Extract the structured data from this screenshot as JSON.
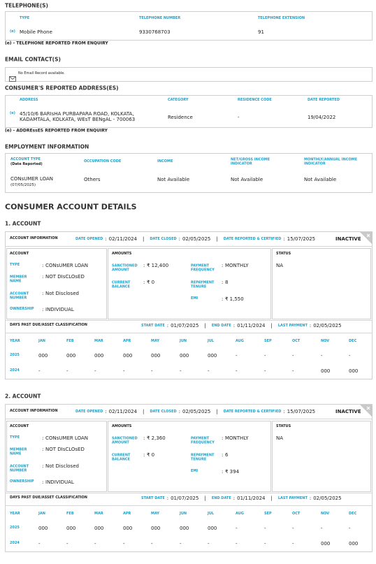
{
  "separator": ":",
  "divider": "|",
  "telephones": {
    "title": "TELEPHONE(S)",
    "headers": [
      "TYPE",
      "TELEPHONE NUMBER",
      "TELEPHONE EXTENSION"
    ],
    "rows": [
      {
        "marker": "(e)",
        "type": "Mobile Phone",
        "number": "9330768703",
        "extension": "91"
      }
    ],
    "note": "(e) - TELEPHONE REPORTED FROM ENQUIRY"
  },
  "email": {
    "title": "EMAIL CONTACT(S)",
    "message": "No Email Record available."
  },
  "addresses": {
    "title": "CONSUMER'S REPORTED ADDRESS(ES)",
    "headers": [
      "ADDRESS",
      "CATEGORY",
      "RESIDENCE CODE",
      "DATE REPORTED"
    ],
    "rows": [
      {
        "marker": "(e)",
        "address": "45/10/6 BARIsHA PURBAPARA ROAD, KOLKATA, KADAMTALA, KOLKATA, WEsT BENgAL - 700063",
        "category": "Residence",
        "residence_code": "-",
        "date_reported": "19/04/2022"
      }
    ],
    "note": "(e) - ADDREssES REPORTED FROM ENQUIRY"
  },
  "employment": {
    "title": "EMPLOYMENT INFORMATION",
    "headers": [
      "ACCOUNT TYPE",
      "OCCUPATION CODE",
      "INCOME",
      "NET/GROSS INCOME INDICATOR",
      "MONTHLY/ANNUAL INCOME INDICATOR"
    ],
    "header_sub": "(Date Reported)",
    "row": {
      "account_type": "CONsUMER LOAN",
      "date": "(07/05/2025)",
      "occupation": "Others",
      "income": "Not Available",
      "net_gross": "Not Available",
      "monthly_annual": "Not Available"
    }
  },
  "account_details": {
    "title": "CONSUMER ACCOUNT DETAILS",
    "accounts": [
      {
        "heading": "1. ACCOUNT",
        "info": {
          "label": "ACCOUNT INFORMATION",
          "date_opened_label": "DATE OPENED",
          "date_opened": "02/11/2024",
          "date_closed_label": "DATE CLOSED",
          "date_closed": "02/05/2025",
          "date_reported_label": "DATE REPORTED & CERTIFIED",
          "date_reported": "15/07/2025",
          "status": "INACTIVE"
        },
        "account": {
          "title": "ACCOUNT",
          "fields": [
            {
              "label": "TYPE",
              "value": "CONsUMER LOAN"
            },
            {
              "label": "MEMBER NAME",
              "value": "NOT DIsCLOsED"
            },
            {
              "label": "ACCOUNT NUMBER",
              "value": "Not Disclosed"
            },
            {
              "label": "OWNERSHIP",
              "value": "INDIVIDUAL"
            }
          ]
        },
        "amounts": {
          "title": "AMOUNTS",
          "fields": [
            {
              "label": "SANCTIONED AMOUNT",
              "value": "₹ 12,400"
            },
            {
              "label": "CURRENT BALANCE",
              "value": "₹ 0"
            },
            {
              "label": "PAYMENT FREQUENCY",
              "value": "MONTHLY"
            },
            {
              "label": "REPAYMENT TENURE",
              "value": "8"
            },
            {
              "label": "EMI",
              "value": "₹ 1,550"
            }
          ]
        },
        "status": {
          "title": "STATUS",
          "value": "NA"
        },
        "dpd": {
          "title": "DAYS PAST DUE/ASSET CLASSIFICATION",
          "start_label": "START DATE",
          "start": "01/07/2025",
          "end_label": "END DATE",
          "end": "01/11/2024",
          "last_label": "LAST PAYMENT",
          "last": "02/05/2025",
          "header": [
            "YEAR",
            "JAN",
            "FEB",
            "MAR",
            "APR",
            "MAY",
            "JUN",
            "JUL",
            "AUG",
            "SEP",
            "OCT",
            "NOV",
            "DEC"
          ],
          "rows": [
            {
              "year": "2025",
              "values": [
                "000",
                "000",
                "000",
                "000",
                "000",
                "000",
                "000",
                "-",
                "-",
                "-",
                "-",
                "-"
              ]
            },
            {
              "year": "2024",
              "values": [
                "-",
                "-",
                "-",
                "-",
                "-",
                "-",
                "-",
                "-",
                "-",
                "-",
                "000",
                "000"
              ]
            }
          ]
        }
      },
      {
        "heading": "2. ACCOUNT",
        "info": {
          "label": "ACCOUNT INFORMATION",
          "date_opened_label": "DATE OPENED",
          "date_opened": "02/11/2024",
          "date_closed_label": "DATE CLOSED",
          "date_closed": "02/05/2025",
          "date_reported_label": "DATE REPORTED & CERTIFIED",
          "date_reported": "15/07/2025",
          "status": "INACTIVE"
        },
        "account": {
          "title": "ACCOUNT",
          "fields": [
            {
              "label": "TYPE",
              "value": "CONsUMER LOAN"
            },
            {
              "label": "MEMBER NAME",
              "value": "NOT DIsCLOsED"
            },
            {
              "label": "ACCOUNT NUMBER",
              "value": "Not Disclosed"
            },
            {
              "label": "OWNERSHIP",
              "value": "INDIVIDUAL"
            }
          ]
        },
        "amounts": {
          "title": "AMOUNTS",
          "fields": [
            {
              "label": "SANCTIONED AMOUNT",
              "value": "₹ 2,360"
            },
            {
              "label": "CURRENT BALANCE",
              "value": "₹ 0"
            },
            {
              "label": "PAYMENT FREQUENCY",
              "value": "MONTHLY"
            },
            {
              "label": "REPAYMENT TENURE",
              "value": "6"
            },
            {
              "label": "EMI",
              "value": "₹ 394"
            }
          ]
        },
        "status": {
          "title": "STATUS",
          "value": "NA"
        },
        "dpd": {
          "title": "DAYS PAST DUE/ASSET CLASSIFICATION",
          "start_label": "START DATE",
          "start": "01/07/2025",
          "end_label": "END DATE",
          "end": "01/11/2024",
          "last_label": "LAST PAYMENT",
          "last": "02/05/2025",
          "header": [
            "YEAR",
            "JAN",
            "FEB",
            "MAR",
            "APR",
            "MAY",
            "JUN",
            "JUL",
            "AUG",
            "SEP",
            "OCT",
            "NOV",
            "DEC"
          ],
          "rows": [
            {
              "year": "2025",
              "values": [
                "000",
                "000",
                "000",
                "000",
                "000",
                "000",
                "000",
                "-",
                "-",
                "-",
                "-",
                "-"
              ]
            },
            {
              "year": "2024",
              "values": [
                "-",
                "-",
                "-",
                "-",
                "-",
                "-",
                "-",
                "-",
                "-",
                "-",
                "000",
                "000"
              ]
            }
          ]
        }
      }
    ]
  }
}
